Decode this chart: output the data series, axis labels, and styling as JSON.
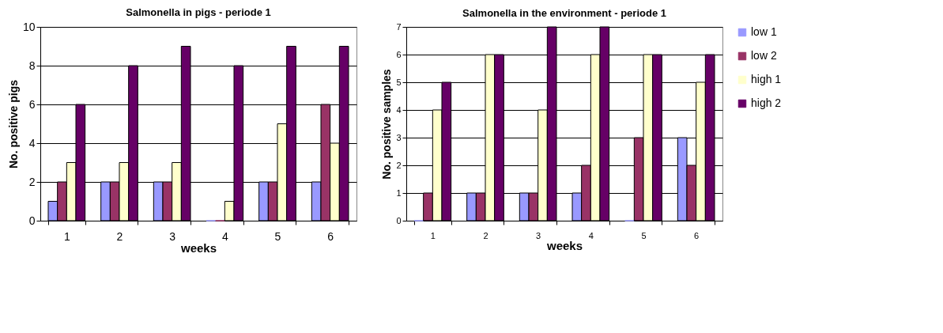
{
  "chart_data": [
    {
      "type": "bar",
      "title": "Salmonella in pigs - periode 1",
      "xlabel": "weeks",
      "ylabel": "No. positive pigs",
      "categories": [
        "1",
        "2",
        "3",
        "4",
        "5",
        "6"
      ],
      "ylim": [
        0,
        10
      ],
      "yticks": [
        0,
        2,
        4,
        6,
        8,
        10
      ],
      "grid": "y",
      "legend": false,
      "series": [
        {
          "color": "#9999ff",
          "values": [
            1,
            2,
            2,
            0,
            2,
            2
          ]
        },
        {
          "color": "#993366",
          "values": [
            2,
            2,
            2,
            0,
            2,
            6
          ]
        },
        {
          "color": "#ffffcc",
          "values": [
            3,
            3,
            3,
            1,
            5,
            4
          ]
        },
        {
          "color": "#660066",
          "values": [
            6,
            8,
            9,
            8,
            9,
            9
          ]
        }
      ]
    },
    {
      "type": "bar",
      "title": "Salmonella in the environment - periode 1",
      "xlabel": "weeks",
      "ylabel": "No. positive samples",
      "categories": [
        "1",
        "2",
        "3",
        "4",
        "5",
        "6"
      ],
      "ylim": [
        0,
        7
      ],
      "yticks": [
        0,
        1,
        2,
        3,
        4,
        5,
        6,
        7
      ],
      "grid": "y",
      "legend": "right",
      "series": [
        {
          "name": "low 1",
          "color": "#9999ff",
          "values": [
            0,
            1,
            1,
            1,
            0,
            3
          ]
        },
        {
          "name": "low 2",
          "color": "#993366",
          "values": [
            1,
            1,
            1,
            2,
            3,
            2
          ]
        },
        {
          "name": "high 1",
          "color": "#ffffcc",
          "values": [
            4,
            6,
            4,
            6,
            6,
            5
          ]
        },
        {
          "name": "high 2",
          "color": "#660066",
          "values": [
            5,
            6,
            7,
            7,
            6,
            6
          ]
        }
      ]
    }
  ]
}
